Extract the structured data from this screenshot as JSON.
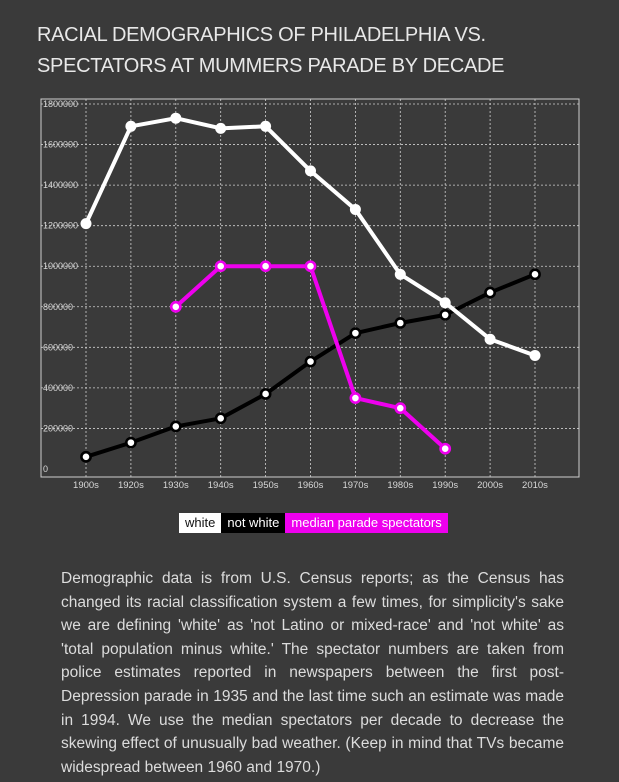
{
  "title": "RACIAL DEMOGRAPHICS OF PHILADELPHIA VS. SPECTATORS AT MUMMERS PARADE BY DECADE",
  "legend": {
    "white": "white",
    "not_white": "not white",
    "spectators": "median parade spectators"
  },
  "note": "Demographic data is from U.S. Census reports; as the Census has changed its racial classification system a few times, for simplicity's sake we are defining 'white' as 'not Latino or mixed-race' and 'not white' as 'total population minus white.' The spectator numbers are taken from police estimates reported in newspapers between the first post-Depression parade in 1935 and the last time such an estimate was made in 1994. We use the median spectators per decade to decrease the skewing effect of unusually bad weather. (Keep in mind that TVs became widespread between 1960 and 1970.)",
  "colors": {
    "white": "#ffffff",
    "not_white": "#000000",
    "spectators": "#ee00ee",
    "background": "#3a3a3a"
  },
  "chart_data": {
    "type": "line",
    "x": [
      "1900s",
      "1920s",
      "1930s",
      "1940s",
      "1950s",
      "1960s",
      "1970s",
      "1980s",
      "1990s",
      "2000s",
      "2010s"
    ],
    "yticks": [
      "0",
      "200000",
      "400000",
      "600000",
      "800000",
      "1000000",
      "1200000",
      "1400000",
      "1600000",
      "1800000"
    ],
    "ylim": [
      0,
      1800000
    ],
    "grid": true,
    "series": [
      {
        "name": "white",
        "color": "#ffffff",
        "values": [
          1210000,
          1690000,
          1730000,
          1680000,
          1690000,
          1470000,
          1280000,
          960000,
          820000,
          640000,
          560000
        ]
      },
      {
        "name": "not white",
        "color": "#000000",
        "values": [
          60000,
          130000,
          210000,
          250000,
          370000,
          530000,
          670000,
          720000,
          760000,
          870000,
          960000
        ]
      },
      {
        "name": "median parade spectators",
        "color": "#ee00ee",
        "values": [
          null,
          null,
          800000,
          1000000,
          1000000,
          1000000,
          350000,
          300000,
          100000,
          null,
          null
        ]
      }
    ]
  }
}
